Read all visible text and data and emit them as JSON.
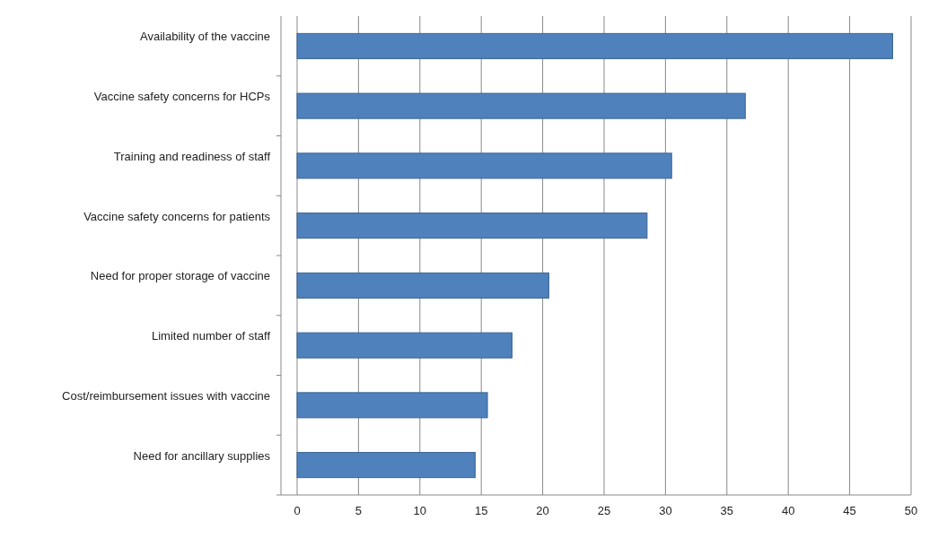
{
  "chart_data": {
    "type": "bar",
    "orientation": "horizontal",
    "categories": [
      "Availability of the  vaccine",
      "Vaccine safety concerns for HCPs",
      "Training and readiness of staff",
      "Vaccine safety concerns for patients",
      "Need for proper storage of vaccine",
      "Limited number of staff",
      "Cost/reimbursement issues with vaccine",
      "Need for ancillary supplies"
    ],
    "values": [
      48.5,
      36.5,
      30.5,
      28.5,
      20.5,
      17.5,
      15.5,
      14.5
    ],
    "color": "#4f81bd",
    "xlim": [
      0,
      50
    ],
    "xticks": [
      0,
      5,
      10,
      15,
      20,
      25,
      30,
      35,
      40,
      45,
      50
    ],
    "grid": "x"
  }
}
